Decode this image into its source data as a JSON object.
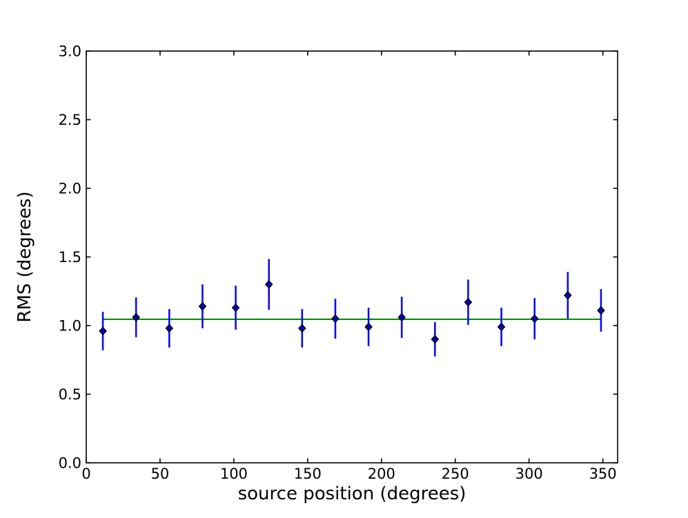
{
  "figure": {
    "background": "#ffffff"
  },
  "chart_data": {
    "type": "scatter",
    "title": "",
    "xlabel": "source position (degrees)",
    "ylabel": "RMS (degrees)",
    "xlim": [
      0,
      360
    ],
    "ylim": [
      0.0,
      3.0
    ],
    "xtick_values": [
      0,
      50,
      100,
      150,
      200,
      250,
      300,
      350
    ],
    "xtick_labels": [
      "0",
      "50",
      "100",
      "150",
      "200",
      "250",
      "300",
      "350"
    ],
    "ytick_values": [
      0.0,
      0.5,
      1.0,
      1.5,
      2.0,
      2.5,
      3.0
    ],
    "ytick_labels": [
      "0.0",
      "0.5",
      "1.0",
      "1.5",
      "2.0",
      "2.5",
      "3.0"
    ],
    "grid": false,
    "legend": "none",
    "colors": {
      "errorbar": "#0b0bf0",
      "marker_face": "#0000cc",
      "marker_edge": "#000000",
      "mean_line": "#008000",
      "axes": "#000000",
      "background": "#ffffff"
    },
    "series": [
      {
        "name": "rms-vs-source-position",
        "type": "errorbar",
        "marker": "diamond",
        "x": [
          11.25,
          33.75,
          56.25,
          78.75,
          101.25,
          123.75,
          146.25,
          168.75,
          191.25,
          213.75,
          236.25,
          258.75,
          281.25,
          303.75,
          326.25,
          348.75
        ],
        "y": [
          0.96,
          1.06,
          0.98,
          1.14,
          1.13,
          1.3,
          0.98,
          1.05,
          0.99,
          1.06,
          0.9,
          1.17,
          0.99,
          1.05,
          1.22,
          1.11
        ],
        "yerr": [
          0.14,
          0.145,
          0.14,
          0.16,
          0.16,
          0.185,
          0.14,
          0.145,
          0.14,
          0.15,
          0.125,
          0.165,
          0.14,
          0.15,
          0.17,
          0.155
        ]
      },
      {
        "name": "mean-level-line",
        "type": "line",
        "x": [
          11.25,
          348.75
        ],
        "y": [
          1.046,
          1.046
        ]
      }
    ]
  }
}
